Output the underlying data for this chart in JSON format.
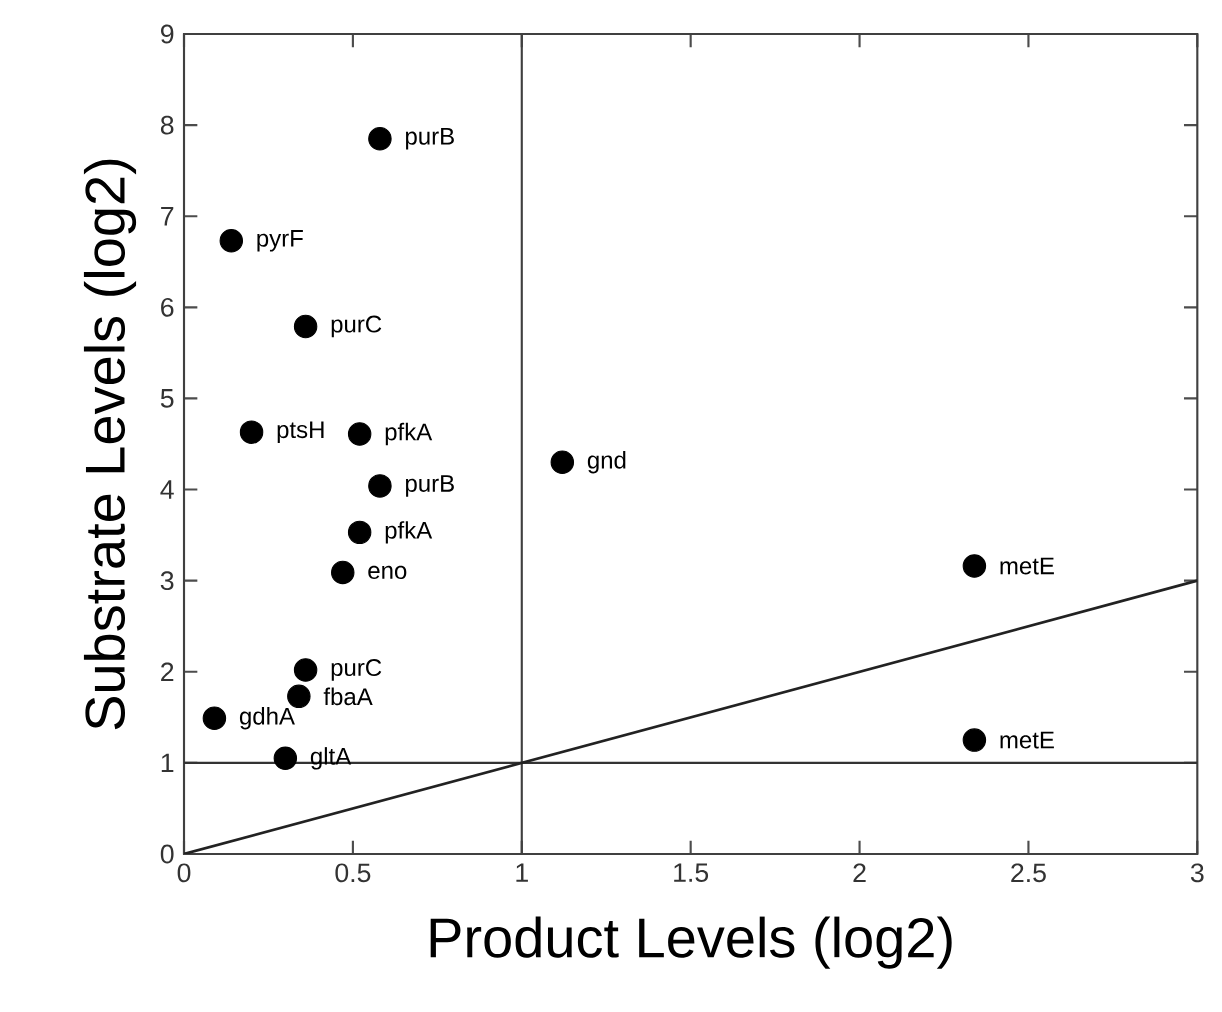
{
  "chart_data": {
    "type": "scatter",
    "xlabel": "Product Levels (log2)",
    "ylabel": "Substrate Levels (log2)",
    "xlim": [
      0,
      3
    ],
    "ylim": [
      0,
      9
    ],
    "xticks": [
      0,
      0.5,
      1,
      1.5,
      2,
      2.5,
      3
    ],
    "yticks": [
      0,
      1,
      2,
      3,
      4,
      5,
      6,
      7,
      8,
      9
    ],
    "marker": "circle",
    "grid": false,
    "series": [
      {
        "color": "#000000",
        "x": [
          0.58,
          0.14,
          0.36,
          0.2,
          0.52,
          0.58,
          1.12,
          0.52,
          0.47,
          2.34,
          0.36,
          0.34,
          0.09,
          0.3,
          2.34
        ],
        "values": [
          7.85,
          6.73,
          5.79,
          4.63,
          4.61,
          4.04,
          4.3,
          3.53,
          3.09,
          3.16,
          2.02,
          1.73,
          1.49,
          1.05,
          1.25
        ]
      },
      {
        "type": "line",
        "color": "#222222",
        "marker": "none",
        "x": [
          0,
          3
        ],
        "values": [
          0,
          3
        ]
      }
    ],
    "ref_lines": [
      {
        "axis": "y",
        "value": 1,
        "color": "#333333"
      },
      {
        "axis": "x",
        "value": 1,
        "color": "#404040"
      }
    ],
    "annotations": [
      {
        "text": "purB",
        "x": 0.58,
        "y": 7.85
      },
      {
        "text": "pyrF",
        "x": 0.14,
        "y": 6.73
      },
      {
        "text": "purC",
        "x": 0.36,
        "y": 5.79
      },
      {
        "text": "ptsH",
        "x": 0.2,
        "y": 4.63
      },
      {
        "text": "pfkA",
        "x": 0.52,
        "y": 4.61
      },
      {
        "text": "purB",
        "x": 0.58,
        "y": 4.04
      },
      {
        "text": "gnd",
        "x": 1.12,
        "y": 4.3
      },
      {
        "text": "pfkA",
        "x": 0.52,
        "y": 3.53
      },
      {
        "text": "eno",
        "x": 0.47,
        "y": 3.09
      },
      {
        "text": "metE",
        "x": 2.34,
        "y": 3.16
      },
      {
        "text": "purC",
        "x": 0.36,
        "y": 2.02
      },
      {
        "text": "fbaA",
        "x": 0.34,
        "y": 1.73
      },
      {
        "text": "gdhA",
        "x": 0.09,
        "y": 1.49
      },
      {
        "text": "gltA",
        "x": 0.3,
        "y": 1.05
      },
      {
        "text": "metE",
        "x": 2.34,
        "y": 1.25
      }
    ]
  }
}
